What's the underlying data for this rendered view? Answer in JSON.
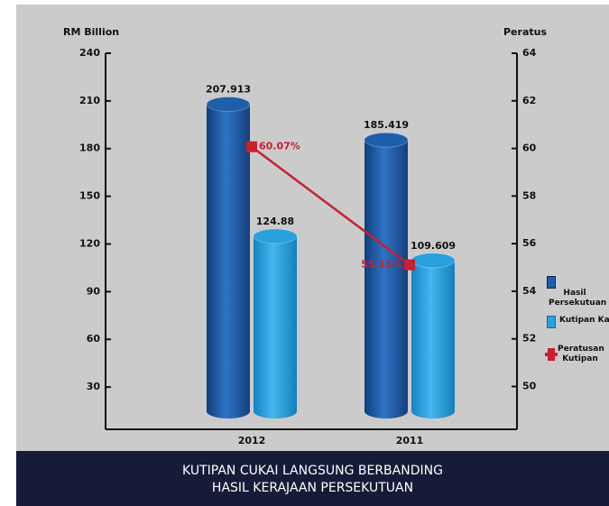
{
  "chart_data": {
    "type": "bar",
    "title": [
      "KUTIPAN CUKAI LANGSUNG BERBANDING",
      "HASIL KERAJAAN PERSEKUTUAN"
    ],
    "y_label": "RM Billion",
    "y2_label": "Peratus",
    "categories": [
      "2012",
      "2011"
    ],
    "series": [
      {
        "name": "Hasil Persekutuan",
        "color": "#1f5ea8",
        "values": [
          207.913,
          185.419
        ]
      },
      {
        "name": "Kutipan Kasar",
        "color": "#2aa0dc",
        "values": [
          124.88,
          109.609
        ]
      },
      {
        "name": "Peratusan Kutipan",
        "type": "line",
        "axis": "y2",
        "color": "#c8202f",
        "values": [
          60.07,
          55.11
        ],
        "value_labels": [
          "60.07%",
          "55.11%"
        ]
      }
    ],
    "ylim": [
      3.4,
      240
    ],
    "yticks": [
      30,
      60,
      90,
      120,
      150,
      180,
      210,
      240
    ],
    "y2lim": [
      48.2,
      64
    ],
    "y2ticks": [
      50,
      52,
      54,
      56,
      58,
      60,
      62,
      64
    ],
    "legend": "right"
  }
}
